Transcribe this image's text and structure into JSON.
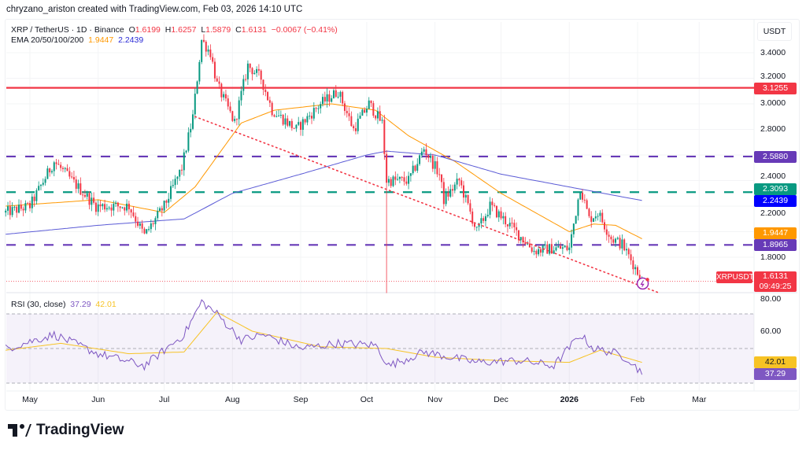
{
  "header": {
    "credit": "chryzano_ariston created with TradingView.com, Feb 03, 2026 14:10 UTC"
  },
  "legend": {
    "symbol": "XRP / TetherUS · 1D · Binance",
    "o_label": "O",
    "o": "1.6199",
    "h_label": "H",
    "h": "1.6257",
    "l_label": "L",
    "l": "1.5879",
    "c_label": "C",
    "c": "1.6131",
    "change": "−0.0067 (−0.41%)",
    "ema_label": "EMA 20/50/100/200",
    "ema_a": "1.9447",
    "ema_b": "2.2439"
  },
  "rsi_legend": {
    "label": "RSI (30, close)",
    "rsi": "37.29",
    "ma": "42.01"
  },
  "axis": {
    "currency": "USDT",
    "price_ticks": [
      "3.4000",
      "3.2000",
      "3.0000",
      "2.8000",
      "2.4000",
      "2.2000",
      "1.8000"
    ],
    "rsi_ticks": [
      "80.00",
      "60.00"
    ],
    "months": [
      {
        "label": "May",
        "date": "2025-05-01"
      },
      {
        "label": "Jun",
        "date": "2025-06-01"
      },
      {
        "label": "Jul",
        "date": "2025-07-01"
      },
      {
        "label": "Aug",
        "date": "2025-08-01"
      },
      {
        "label": "Sep",
        "date": "2025-09-01"
      },
      {
        "label": "Oct",
        "date": "2025-10-01"
      },
      {
        "label": "Nov",
        "date": "2025-11-01"
      },
      {
        "label": "Dec",
        "date": "2025-12-01"
      },
      {
        "label": "2026",
        "date": "2026-01-01"
      },
      {
        "label": "Feb",
        "date": "2026-02-01"
      },
      {
        "label": "Mar",
        "date": "2026-03-01"
      }
    ]
  },
  "badges": {
    "red_level": {
      "text": "3.1255",
      "color": "#f23645"
    },
    "purple_top": {
      "text": "2.5880",
      "color": "#673ab7"
    },
    "teal_level": {
      "text": "2.3093",
      "color": "#089981"
    },
    "ema_blue": {
      "text": "2.2439",
      "color": "#0000ff"
    },
    "ema_orange": {
      "text": "1.9447",
      "color": "#ff9800"
    },
    "purple_low": {
      "text": "1.8965",
      "color": "#673ab7"
    },
    "symbol": "XRPUSDT",
    "last": "1.6131",
    "countdown": "09:49:25",
    "rsi_ma": "42.01",
    "rsi": "37.29"
  },
  "brand": {
    "name": "TradingView"
  },
  "chart_data": {
    "type": "candlestick",
    "interval": "1D",
    "ylim": [
      1.45,
      3.65
    ],
    "rsi_ylim": [
      24,
      80
    ],
    "colors": {
      "up": "#089981",
      "down": "#f23645",
      "ema_orange": "#ff9800",
      "ema_blue": "#5b5bd6",
      "rsi": "#7e57c2",
      "rsi_ma": "#f7c325"
    },
    "close_path": [
      [
        "2025-04-20",
        2.15
      ],
      [
        "2025-05-01",
        2.2
      ],
      [
        "2025-05-12",
        2.55
      ],
      [
        "2025-05-20",
        2.4
      ],
      [
        "2025-05-31",
        2.2
      ],
      [
        "2025-06-15",
        2.2
      ],
      [
        "2025-06-22",
        1.97
      ],
      [
        "2025-07-01",
        2.2
      ],
      [
        "2025-07-09",
        2.5
      ],
      [
        "2025-07-14",
        2.9
      ],
      [
        "2025-07-18",
        3.5
      ],
      [
        "2025-07-22",
        3.4
      ],
      [
        "2025-07-25",
        3.15
      ],
      [
        "2025-08-02",
        2.85
      ],
      [
        "2025-08-08",
        3.3
      ],
      [
        "2025-08-14",
        3.2
      ],
      [
        "2025-08-19",
        2.95
      ],
      [
        "2025-08-30",
        2.8
      ],
      [
        "2025-09-10",
        3.0
      ],
      [
        "2025-09-18",
        3.1
      ],
      [
        "2025-09-25",
        2.8
      ],
      [
        "2025-10-02",
        3.0
      ],
      [
        "2025-10-08",
        2.85
      ],
      [
        "2025-10-10",
        2.4
      ],
      [
        "2025-10-20",
        2.4
      ],
      [
        "2025-10-27",
        2.65
      ],
      [
        "2025-11-03",
        2.45
      ],
      [
        "2025-11-05",
        2.25
      ],
      [
        "2025-11-12",
        2.4
      ],
      [
        "2025-11-20",
        2.0
      ],
      [
        "2025-11-26",
        2.2
      ],
      [
        "2025-12-05",
        2.05
      ],
      [
        "2025-12-16",
        1.85
      ],
      [
        "2025-12-25",
        1.87
      ],
      [
        "2026-01-01",
        1.87
      ],
      [
        "2026-01-06",
        2.35
      ],
      [
        "2026-01-10",
        2.1
      ],
      [
        "2026-01-14",
        2.15
      ],
      [
        "2026-01-20",
        1.95
      ],
      [
        "2026-01-25",
        1.9
      ],
      [
        "2026-01-30",
        1.75
      ],
      [
        "2026-02-03",
        1.6131
      ]
    ],
    "wick_extremes": [
      {
        "date": "2025-10-10",
        "low": 1.52
      }
    ],
    "ema_orange": [
      [
        "2025-04-20",
        2.2
      ],
      [
        "2025-06-01",
        2.25
      ],
      [
        "2025-07-01",
        2.15
      ],
      [
        "2025-07-15",
        2.35
      ],
      [
        "2025-08-05",
        2.85
      ],
      [
        "2025-08-20",
        2.95
      ],
      [
        "2025-09-15",
        3.0
      ],
      [
        "2025-10-05",
        2.95
      ],
      [
        "2025-10-20",
        2.75
      ],
      [
        "2025-11-10",
        2.55
      ],
      [
        "2025-12-01",
        2.3
      ],
      [
        "2026-01-01",
        2.0
      ],
      [
        "2026-01-12",
        2.06
      ],
      [
        "2026-01-22",
        2.05
      ],
      [
        "2026-02-03",
        1.9447
      ]
    ],
    "ema_blue": [
      [
        "2025-04-20",
        1.98
      ],
      [
        "2025-06-01",
        2.05
      ],
      [
        "2025-07-10",
        2.1
      ],
      [
        "2025-08-01",
        2.3
      ],
      [
        "2025-09-01",
        2.45
      ],
      [
        "2025-10-01",
        2.6
      ],
      [
        "2025-10-10",
        2.63
      ],
      [
        "2025-11-01",
        2.6
      ],
      [
        "2025-12-01",
        2.45
      ],
      [
        "2026-01-01",
        2.35
      ],
      [
        "2026-02-03",
        2.2439
      ]
    ],
    "levels": [
      {
        "price": 3.1255,
        "style": "solid",
        "color": "#f23645"
      },
      {
        "price": 2.588,
        "style": "dashed",
        "color": "#673ab7"
      },
      {
        "price": 2.3093,
        "style": "dashed",
        "color": "#089981"
      },
      {
        "price": 1.8965,
        "style": "dashed",
        "color": "#673ab7"
      }
    ],
    "trendline": {
      "from": [
        "2025-07-15",
        2.9
      ],
      "to": [
        "2026-02-11",
        1.52
      ],
      "color": "#f23645",
      "style": "dotted"
    },
    "rsi": [
      [
        "2025-04-20",
        50
      ],
      [
        "2025-05-12",
        58
      ],
      [
        "2025-06-01",
        47
      ],
      [
        "2025-06-22",
        40
      ],
      [
        "2025-07-10",
        58
      ],
      [
        "2025-07-18",
        77
      ],
      [
        "2025-07-25",
        70
      ],
      [
        "2025-08-05",
        55
      ],
      [
        "2025-08-15",
        58
      ],
      [
        "2025-09-01",
        50
      ],
      [
        "2025-09-18",
        53
      ],
      [
        "2025-10-05",
        52
      ],
      [
        "2025-10-11",
        40
      ],
      [
        "2025-10-27",
        48
      ],
      [
        "2025-11-20",
        42
      ],
      [
        "2025-12-10",
        43
      ],
      [
        "2025-12-25",
        40
      ],
      [
        "2026-01-06",
        58
      ],
      [
        "2026-01-12",
        50
      ],
      [
        "2026-01-20",
        48
      ],
      [
        "2026-01-28",
        44
      ],
      [
        "2026-02-01",
        38
      ],
      [
        "2026-02-03",
        37.29
      ]
    ],
    "rsi_ma": [
      [
        "2025-04-20",
        49
      ],
      [
        "2025-05-15",
        53
      ],
      [
        "2025-06-15",
        47
      ],
      [
        "2025-07-10",
        48
      ],
      [
        "2025-07-25",
        71
      ],
      [
        "2025-08-10",
        60
      ],
      [
        "2025-09-10",
        51
      ],
      [
        "2025-10-10",
        50
      ],
      [
        "2025-11-01",
        45
      ],
      [
        "2025-12-01",
        43
      ],
      [
        "2026-01-01",
        42
      ],
      [
        "2026-01-15",
        49
      ],
      [
        "2026-02-03",
        42.01
      ]
    ],
    "rsi_bands": [
      70,
      50,
      30
    ]
  }
}
